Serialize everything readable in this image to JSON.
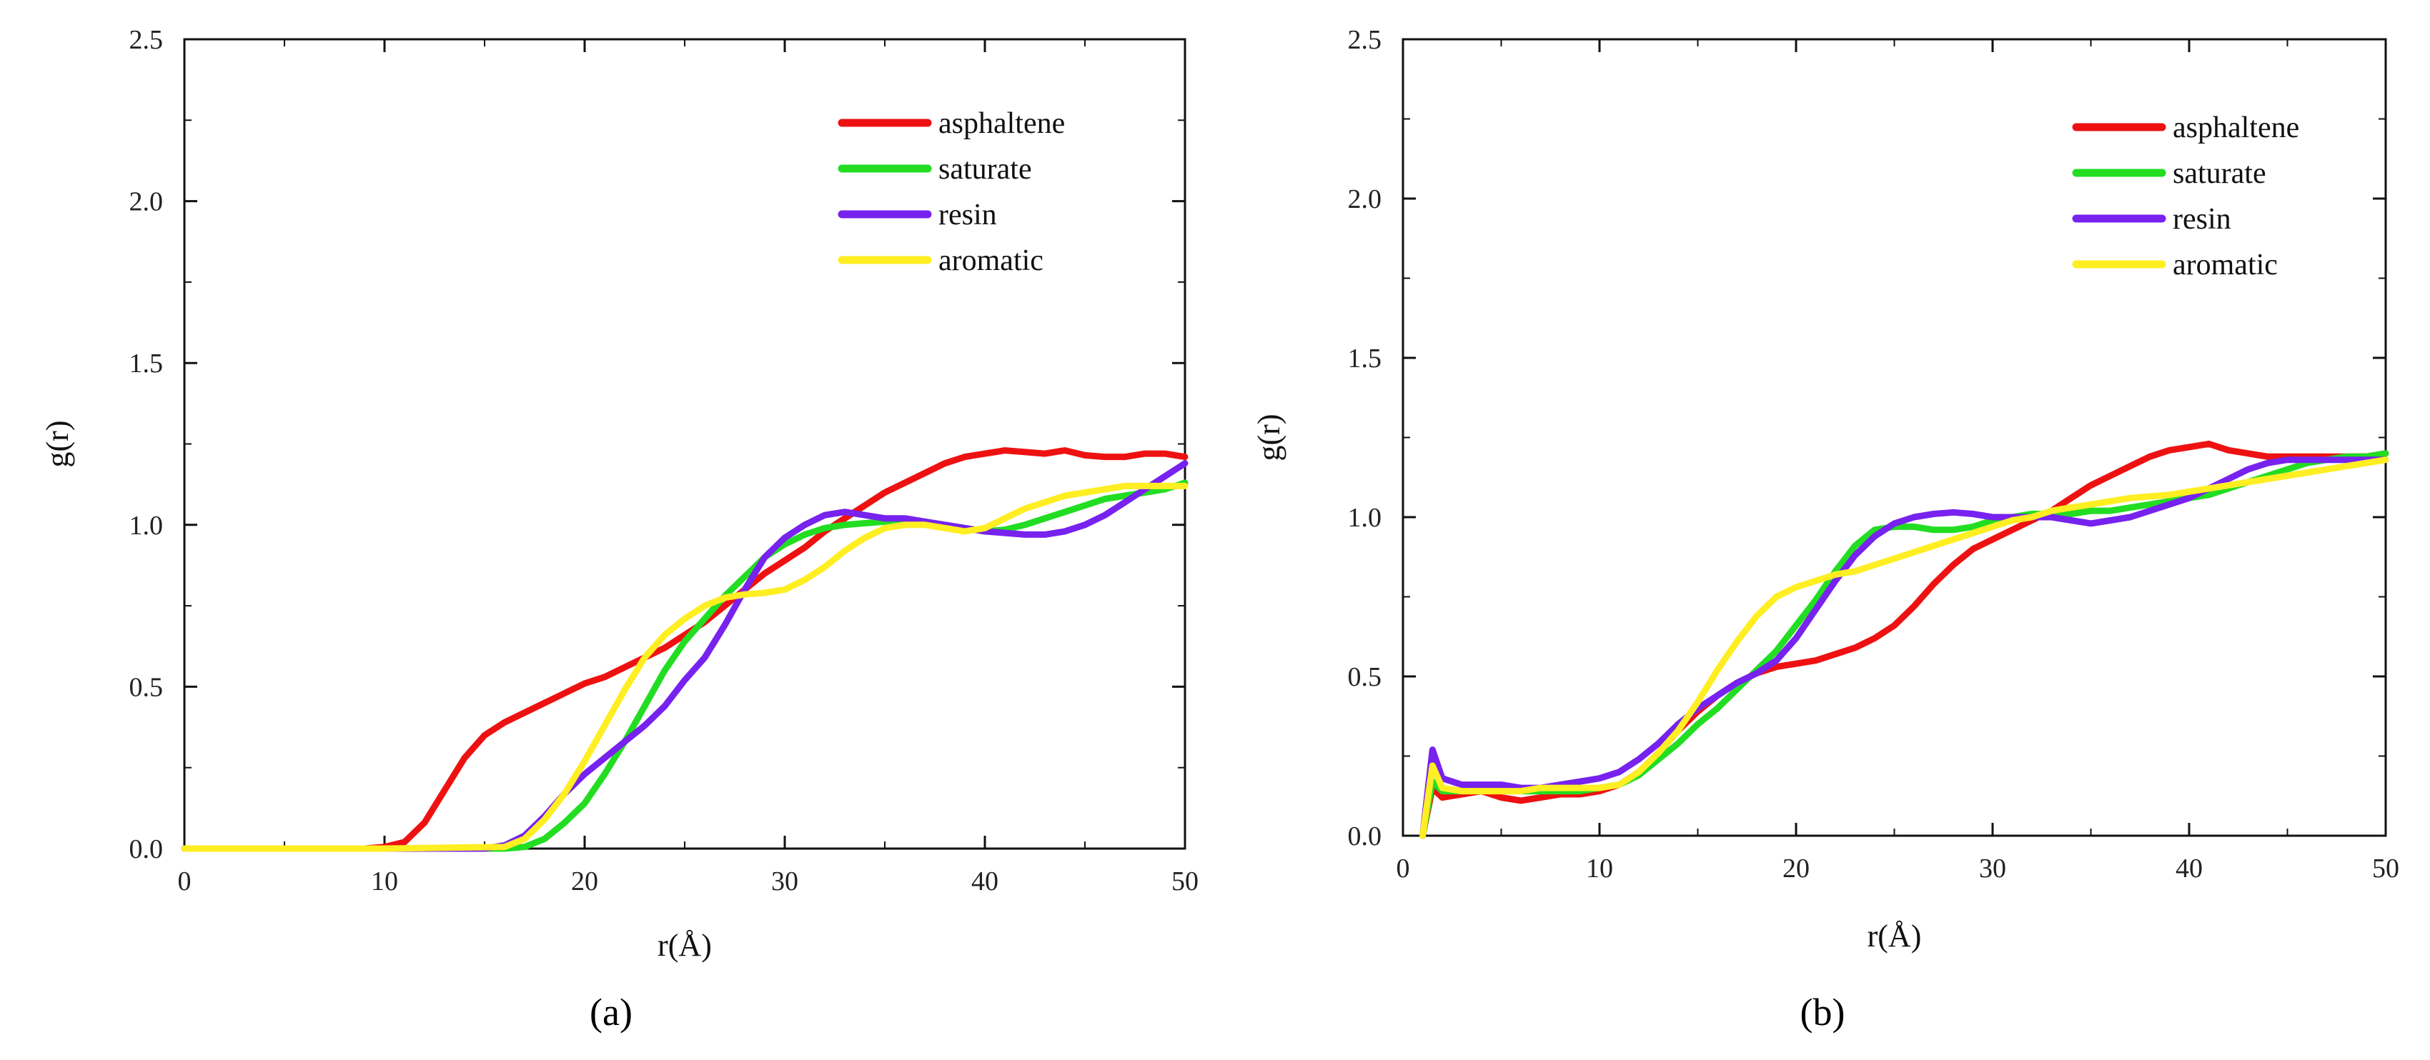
{
  "chart_data": [
    {
      "type": "line",
      "caption": "(a)",
      "xlabel": "r(Å)",
      "ylabel": "g(r)",
      "xlim": [
        0,
        50
      ],
      "ylim": [
        0,
        2.5
      ],
      "xticks": [
        "0",
        "10",
        "20",
        "30",
        "40",
        "50"
      ],
      "yticks": [
        "0.0",
        "0.5",
        "1.0",
        "1.5",
        "2.0",
        "2.5"
      ],
      "legend_position": "top-right",
      "series": [
        {
          "name": "asphaltene",
          "color": "#ee1111",
          "x": [
            0,
            5,
            9,
            10,
            11,
            12,
            13,
            14,
            15,
            16,
            17,
            18,
            19,
            20,
            21,
            22,
            23,
            24,
            25,
            26,
            27,
            28,
            29,
            30,
            31,
            32,
            33,
            34,
            35,
            36,
            37,
            38,
            39,
            40,
            41,
            42,
            43,
            44,
            45,
            46,
            47,
            48,
            49,
            50
          ],
          "y": [
            0,
            0,
            0,
            0.005,
            0.02,
            0.08,
            0.18,
            0.28,
            0.35,
            0.39,
            0.42,
            0.45,
            0.48,
            0.51,
            0.53,
            0.56,
            0.59,
            0.62,
            0.66,
            0.7,
            0.75,
            0.8,
            0.85,
            0.89,
            0.93,
            0.98,
            1.02,
            1.06,
            1.1,
            1.13,
            1.16,
            1.19,
            1.21,
            1.22,
            1.23,
            1.225,
            1.22,
            1.23,
            1.215,
            1.21,
            1.21,
            1.22,
            1.22,
            1.21
          ]
        },
        {
          "name": "saturate",
          "color": "#22dd22",
          "x": [
            0,
            10,
            15,
            16,
            17,
            18,
            19,
            20,
            21,
            22,
            23,
            24,
            25,
            26,
            27,
            28,
            29,
            30,
            31,
            32,
            33,
            34,
            35,
            36,
            37,
            38,
            39,
            40,
            41,
            42,
            43,
            44,
            45,
            46,
            47,
            48,
            49,
            50
          ],
          "y": [
            0,
            0,
            0,
            0,
            0.005,
            0.03,
            0.08,
            0.14,
            0.23,
            0.33,
            0.44,
            0.55,
            0.64,
            0.71,
            0.78,
            0.84,
            0.9,
            0.94,
            0.97,
            0.99,
            1.0,
            1.005,
            1.01,
            1.015,
            1.01,
            1.0,
            0.99,
            0.98,
            0.985,
            1.0,
            1.02,
            1.04,
            1.06,
            1.08,
            1.09,
            1.1,
            1.11,
            1.13
          ]
        },
        {
          "name": "resin",
          "color": "#7722ee",
          "x": [
            0,
            10,
            15,
            16,
            17,
            18,
            19,
            20,
            21,
            22,
            23,
            24,
            25,
            26,
            27,
            28,
            29,
            30,
            31,
            32,
            33,
            34,
            35,
            36,
            37,
            38,
            39,
            40,
            41,
            42,
            43,
            44,
            45,
            46,
            47,
            48,
            49,
            50
          ],
          "y": [
            0,
            0,
            0,
            0.01,
            0.04,
            0.1,
            0.17,
            0.23,
            0.28,
            0.33,
            0.38,
            0.44,
            0.52,
            0.59,
            0.69,
            0.8,
            0.9,
            0.96,
            1.0,
            1.03,
            1.04,
            1.03,
            1.02,
            1.02,
            1.01,
            1.0,
            0.99,
            0.98,
            0.975,
            0.97,
            0.97,
            0.98,
            1.0,
            1.03,
            1.07,
            1.11,
            1.15,
            1.19
          ]
        },
        {
          "name": "aromatic",
          "color": "#ffee22",
          "x": [
            0,
            10,
            16,
            17,
            18,
            19,
            20,
            21,
            22,
            23,
            24,
            25,
            26,
            27,
            28,
            29,
            30,
            31,
            32,
            33,
            34,
            35,
            36,
            37,
            38,
            39,
            40,
            41,
            42,
            43,
            44,
            45,
            46,
            47,
            48,
            49,
            50
          ],
          "y": [
            0,
            0,
            0.005,
            0.03,
            0.09,
            0.17,
            0.27,
            0.38,
            0.49,
            0.59,
            0.66,
            0.71,
            0.75,
            0.775,
            0.785,
            0.79,
            0.8,
            0.83,
            0.87,
            0.92,
            0.96,
            0.99,
            1.0,
            1.0,
            0.99,
            0.98,
            0.99,
            1.02,
            1.05,
            1.07,
            1.09,
            1.1,
            1.11,
            1.12,
            1.12,
            1.12,
            1.12
          ]
        }
      ]
    },
    {
      "type": "line",
      "caption": "(b)",
      "xlabel": "r(Å)",
      "ylabel": "g(r)",
      "xlim": [
        0,
        50
      ],
      "ylim": [
        0,
        2.5
      ],
      "xticks": [
        "0",
        "10",
        "20",
        "30",
        "40",
        "50"
      ],
      "yticks": [
        "0.0",
        "0.5",
        "1.0",
        "1.5",
        "2.0",
        "2.5"
      ],
      "legend_position": "top-right",
      "series": [
        {
          "name": "asphaltene",
          "color": "#ee1111",
          "x": [
            1,
            1.5,
            2,
            3,
            4,
            5,
            6,
            7,
            8,
            9,
            10,
            11,
            12,
            13,
            14,
            15,
            16,
            17,
            18,
            19,
            20,
            21,
            22,
            23,
            24,
            25,
            26,
            27,
            28,
            29,
            30,
            31,
            32,
            33,
            34,
            35,
            36,
            37,
            38,
            39,
            40,
            41,
            42,
            43,
            44,
            45,
            46,
            47,
            48,
            49,
            50
          ],
          "y": [
            0,
            0.15,
            0.12,
            0.13,
            0.14,
            0.12,
            0.11,
            0.12,
            0.13,
            0.13,
            0.14,
            0.16,
            0.2,
            0.26,
            0.33,
            0.39,
            0.44,
            0.48,
            0.51,
            0.53,
            0.54,
            0.55,
            0.57,
            0.59,
            0.62,
            0.66,
            0.72,
            0.79,
            0.85,
            0.9,
            0.93,
            0.96,
            0.99,
            1.02,
            1.06,
            1.1,
            1.13,
            1.16,
            1.19,
            1.21,
            1.22,
            1.23,
            1.21,
            1.2,
            1.19,
            1.19,
            1.19,
            1.19,
            1.19,
            1.19,
            1.2
          ]
        },
        {
          "name": "saturate",
          "color": "#22dd22",
          "x": [
            1,
            1.5,
            2,
            3,
            4,
            5,
            6,
            7,
            8,
            9,
            10,
            11,
            12,
            13,
            14,
            15,
            16,
            17,
            18,
            19,
            20,
            21,
            22,
            23,
            24,
            25,
            26,
            27,
            28,
            29,
            30,
            31,
            32,
            33,
            34,
            35,
            36,
            37,
            38,
            39,
            40,
            41,
            42,
            43,
            44,
            45,
            46,
            47,
            48,
            49,
            50
          ],
          "y": [
            0,
            0.17,
            0.14,
            0.14,
            0.15,
            0.15,
            0.14,
            0.14,
            0.14,
            0.14,
            0.15,
            0.16,
            0.19,
            0.24,
            0.29,
            0.35,
            0.4,
            0.46,
            0.52,
            0.58,
            0.66,
            0.74,
            0.83,
            0.91,
            0.96,
            0.97,
            0.97,
            0.96,
            0.96,
            0.97,
            0.99,
            1.0,
            1.01,
            1.01,
            1.01,
            1.02,
            1.02,
            1.03,
            1.04,
            1.05,
            1.06,
            1.07,
            1.09,
            1.11,
            1.13,
            1.15,
            1.17,
            1.18,
            1.19,
            1.19,
            1.2
          ]
        },
        {
          "name": "resin",
          "color": "#7722ee",
          "x": [
            1,
            1.5,
            2,
            3,
            4,
            5,
            6,
            7,
            8,
            9,
            10,
            11,
            12,
            13,
            14,
            15,
            16,
            17,
            18,
            19,
            20,
            21,
            22,
            23,
            24,
            25,
            26,
            27,
            28,
            29,
            30,
            31,
            32,
            33,
            34,
            35,
            36,
            37,
            38,
            39,
            40,
            41,
            42,
            43,
            44,
            45,
            46,
            47,
            48,
            49,
            50
          ],
          "y": [
            0,
            0.27,
            0.18,
            0.16,
            0.16,
            0.16,
            0.15,
            0.15,
            0.16,
            0.17,
            0.18,
            0.2,
            0.24,
            0.29,
            0.35,
            0.4,
            0.44,
            0.48,
            0.51,
            0.55,
            0.62,
            0.71,
            0.8,
            0.88,
            0.94,
            0.98,
            1.0,
            1.01,
            1.015,
            1.01,
            1.0,
            1.0,
            1.0,
            1.0,
            0.99,
            0.98,
            0.99,
            1.0,
            1.02,
            1.04,
            1.06,
            1.09,
            1.12,
            1.15,
            1.17,
            1.18,
            1.18,
            1.18,
            1.18,
            1.18,
            1.18
          ]
        },
        {
          "name": "aromatic",
          "color": "#ffee22",
          "x": [
            1,
            1.5,
            2,
            3,
            4,
            5,
            6,
            7,
            8,
            9,
            10,
            11,
            12,
            13,
            14,
            15,
            16,
            17,
            18,
            19,
            20,
            21,
            22,
            23,
            24,
            25,
            26,
            27,
            28,
            29,
            30,
            31,
            32,
            33,
            34,
            35,
            36,
            37,
            38,
            39,
            40,
            41,
            42,
            43,
            44,
            45,
            46,
            47,
            48,
            49,
            50
          ],
          "y": [
            0,
            0.22,
            0.15,
            0.14,
            0.14,
            0.14,
            0.14,
            0.15,
            0.15,
            0.15,
            0.15,
            0.16,
            0.2,
            0.26,
            0.33,
            0.42,
            0.52,
            0.61,
            0.69,
            0.75,
            0.78,
            0.8,
            0.82,
            0.83,
            0.85,
            0.87,
            0.89,
            0.91,
            0.93,
            0.95,
            0.97,
            0.99,
            1.0,
            1.02,
            1.03,
            1.04,
            1.05,
            1.06,
            1.065,
            1.07,
            1.08,
            1.09,
            1.1,
            1.11,
            1.12,
            1.13,
            1.14,
            1.15,
            1.16,
            1.17,
            1.18
          ]
        }
      ]
    }
  ]
}
